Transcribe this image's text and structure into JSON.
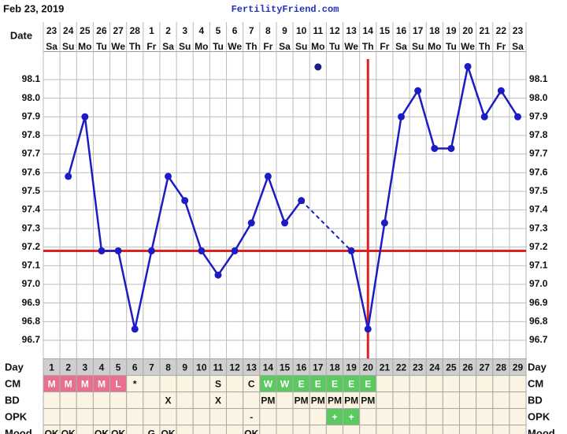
{
  "header": {
    "date": "Feb 23, 2019",
    "site": "FertilityFriend.com"
  },
  "chart_data": {
    "type": "line",
    "date_label": "Date",
    "dates": [
      "23",
      "24",
      "25",
      "26",
      "27",
      "28",
      "1",
      "2",
      "3",
      "4",
      "5",
      "6",
      "7",
      "8",
      "9",
      "10",
      "11",
      "12",
      "13",
      "14",
      "15",
      "16",
      "17",
      "18",
      "19",
      "20",
      "21",
      "22",
      "23"
    ],
    "weekdays": [
      "Sa",
      "Su",
      "Mo",
      "Tu",
      "We",
      "Th",
      "Fr",
      "Sa",
      "Su",
      "Mo",
      "Tu",
      "We",
      "Th",
      "Fr",
      "Sa",
      "Su",
      "Mo",
      "Tu",
      "We",
      "Th",
      "Fr",
      "Sa",
      "Su",
      "Mo",
      "Tu",
      "We",
      "Th",
      "Fr",
      "Sa"
    ],
    "series": [
      {
        "color": "#1c1cc4",
        "values": [
          null,
          97.58,
          97.9,
          97.18,
          97.18,
          96.76,
          97.18,
          97.58,
          97.45,
          97.18,
          97.05,
          97.18,
          97.33,
          97.58,
          97.33,
          97.45,
          null,
          null,
          97.18,
          96.76,
          97.33,
          97.9,
          98.04,
          97.73,
          97.73,
          98.17,
          97.9,
          98.04,
          97.9
        ]
      }
    ],
    "marker_days": [
      17
    ],
    "coverline": 97.18,
    "ovulation_day": 20,
    "line_color": "#e02020",
    "ylim": [
      96.6,
      98.25
    ],
    "yticks": [
      96.7,
      96.8,
      96.9,
      {
        "value": 97.0,
        "label": "97.0"
      },
      97.1,
      97.2,
      97.3,
      97.4,
      97.5,
      97.6,
      97.7,
      97.8,
      97.9,
      {
        "value": 98.0,
        "label": "98.0"
      },
      98.1
    ],
    "grid": true
  },
  "rows": [
    {
      "label": "Day",
      "cells": [
        "1",
        "2",
        "3",
        "4",
        "5",
        "6",
        "7",
        "8",
        "9",
        "10",
        "11",
        "12",
        "13",
        "14",
        "15",
        "16",
        "17",
        "18",
        "19",
        "20",
        "21",
        "22",
        "23",
        "24",
        "25",
        "26",
        "27",
        "28",
        "29"
      ]
    },
    {
      "label": "CM",
      "cells": [
        "M",
        "M",
        "M",
        "M",
        "L",
        "*",
        null,
        null,
        null,
        null,
        "S",
        null,
        "C",
        "W",
        "W",
        "E",
        "E",
        "E",
        "E",
        "E",
        null,
        null,
        null,
        null,
        null,
        null,
        null,
        null,
        null
      ]
    },
    {
      "label": "BD",
      "cells": [
        null,
        null,
        null,
        null,
        null,
        null,
        null,
        "X",
        null,
        null,
        "X",
        null,
        null,
        "PM",
        null,
        "PM",
        "PM",
        "PM",
        "PM",
        "PM",
        null,
        null,
        null,
        null,
        null,
        null,
        null,
        null,
        null
      ]
    },
    {
      "label": "OPK",
      "cells": [
        null,
        null,
        null,
        null,
        null,
        null,
        null,
        null,
        null,
        null,
        null,
        null,
        "-",
        null,
        null,
        null,
        null,
        "+",
        "+",
        null,
        null,
        null,
        null,
        null,
        null,
        null,
        null,
        null,
        null
      ]
    },
    {
      "label": "Mood",
      "cells": [
        "OK",
        "OK",
        null,
        "OK",
        "OK",
        null,
        "G",
        "OK",
        null,
        null,
        null,
        null,
        "OK",
        null,
        null,
        null,
        null,
        null,
        null,
        null,
        null,
        null,
        null,
        null,
        null,
        null,
        null,
        null,
        null
      ]
    }
  ],
  "cell_colors": {
    "M": "#e8708e",
    "L": "#e8708e",
    "W": "#5cc860",
    "E": "#5cc860",
    "+": "#5cc860"
  }
}
